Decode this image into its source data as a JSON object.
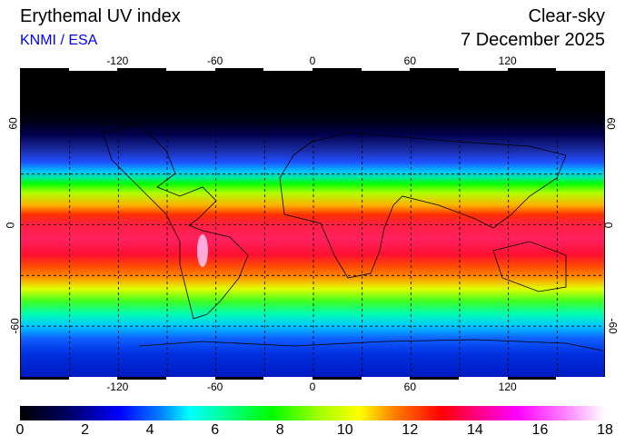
{
  "header": {
    "title": "Erythemal UV index",
    "credit": "KNMI / ESA",
    "sky": "Clear-sky",
    "date": "7 December 2025"
  },
  "map": {
    "lon_labels": [
      "-120",
      "-60",
      "0",
      "60",
      "120"
    ],
    "lon_values": [
      -120,
      -60,
      0,
      60,
      120
    ],
    "lat_labels": [
      "60",
      "0",
      "-60"
    ],
    "lat_values": [
      60,
      0,
      -60
    ]
  },
  "colorbar": {
    "labels": [
      "0",
      "2",
      "4",
      "6",
      "8",
      "10",
      "12",
      "14",
      "16",
      "18"
    ],
    "min": 0,
    "max": 18,
    "colors": {
      "0": "#000000",
      "2": "#0000ff",
      "5": "#00ffff",
      "8": "#00ff00",
      "10": "#ffff00",
      "13": "#ff0000",
      "15": "#ff00ff",
      "18": "#ffffff"
    }
  }
}
